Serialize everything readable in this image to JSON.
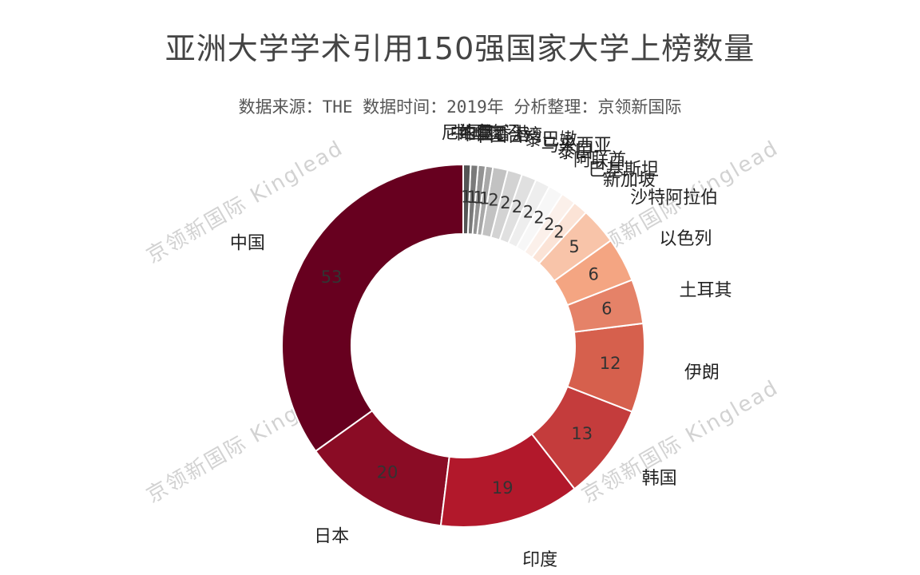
{
  "chart_data": {
    "type": "pie",
    "donut": true,
    "title": "亚洲大学学术引用150强国家大学上榜数量",
    "subtitle": "数据来源：THE 数据时间：2019年 分析整理：京领新国际",
    "watermark": "京领新国际 Kinglead",
    "slices": [
      {
        "label": "中国",
        "value": 53,
        "color": "#67001f"
      },
      {
        "label": "日本",
        "value": 20,
        "color": "#8a0c25"
      },
      {
        "label": "印度",
        "value": 19,
        "color": "#b2182b"
      },
      {
        "label": "韩国",
        "value": 13,
        "color": "#c43c3c"
      },
      {
        "label": "伊朗",
        "value": 12,
        "color": "#d6604d"
      },
      {
        "label": "土耳其",
        "value": 6,
        "color": "#e58268"
      },
      {
        "label": "以色列",
        "value": 6,
        "color": "#f4a582"
      },
      {
        "label": "沙特阿拉伯",
        "value": 5,
        "color": "#f8c4a9"
      },
      {
        "label": "新加坡",
        "value": 2,
        "color": "#fbe3d6"
      },
      {
        "label": "巴基斯坦",
        "value": 2,
        "color": "#fbf0ea"
      },
      {
        "label": "阿联酋",
        "value": 2,
        "color": "#f7f7f7"
      },
      {
        "label": "泰国",
        "value": 2,
        "color": "#eeeeee"
      },
      {
        "label": "马来西亚",
        "value": 2,
        "color": "#e0e0e0"
      },
      {
        "label": "黎巴嫩",
        "value": 2,
        "color": "#d3d3d3"
      },
      {
        "label": "中国台湾",
        "value": 2,
        "color": "#c2c2c2"
      },
      {
        "label": "中国香港",
        "value": 1,
        "color": "#a8a8a8"
      },
      {
        "label": "中国澳门",
        "value": 1,
        "color": "#939393"
      },
      {
        "label": "约旦",
        "value": 1,
        "color": "#7a7a7a"
      },
      {
        "label": "尼泊尔",
        "value": 1,
        "color": "#555555"
      }
    ]
  }
}
